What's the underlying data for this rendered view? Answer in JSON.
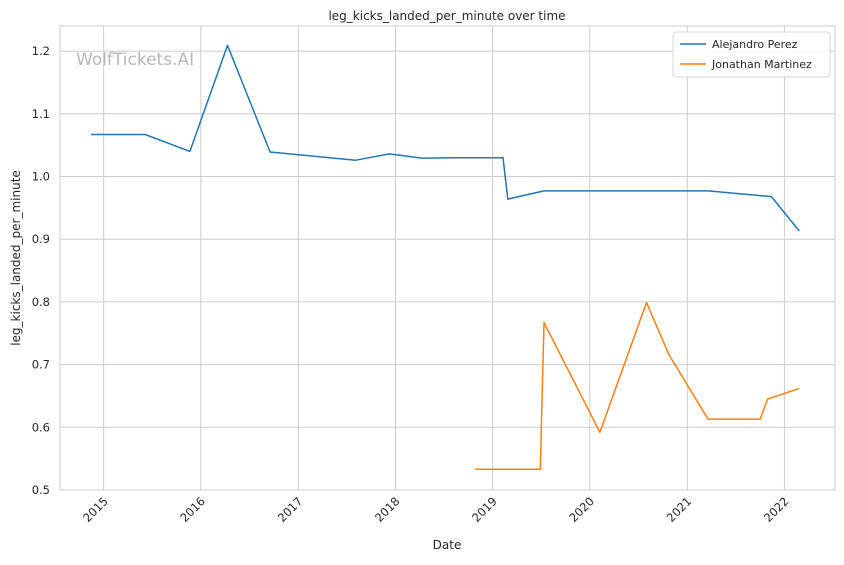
{
  "chart_data": {
    "type": "line",
    "title": "leg_kicks_landed_per_minute over time",
    "xlabel": "Date",
    "ylabel": "leg_kicks_landed_per_minute",
    "watermark": "WolfTickets.AI",
    "xlim": [
      "2014-07-21",
      "2022-07-10"
    ],
    "ylim": [
      0.5,
      1.24
    ],
    "x_ticks": [
      "2015",
      "2016",
      "2017",
      "2018",
      "2019",
      "2020",
      "2021",
      "2022"
    ],
    "y_ticks": [
      "0.5",
      "0.6",
      "0.7",
      "0.8",
      "0.9",
      "1.0",
      "1.1",
      "1.2"
    ],
    "grid": true,
    "legend_position": "top-right",
    "series": [
      {
        "name": "Alejandro Perez",
        "color": "#1f77b4",
        "points": [
          {
            "x": "2014-11-15",
            "y": 1.067
          },
          {
            "x": "2015-06-06",
            "y": 1.067
          },
          {
            "x": "2015-11-21",
            "y": 1.04
          },
          {
            "x": "2016-04-10",
            "y": 1.209
          },
          {
            "x": "2016-09-17",
            "y": 1.039
          },
          {
            "x": "2017-08-05",
            "y": 1.026
          },
          {
            "x": "2017-12-09",
            "y": 1.036
          },
          {
            "x": "2018-04-14",
            "y": 1.029
          },
          {
            "x": "2018-07-28",
            "y": 1.03
          },
          {
            "x": "2019-02-09",
            "y": 1.03
          },
          {
            "x": "2019-02-27",
            "y": 0.964
          },
          {
            "x": "2019-07-13",
            "y": 0.977
          },
          {
            "x": "2021-03-20",
            "y": 0.977
          },
          {
            "x": "2021-11-13",
            "y": 0.968
          },
          {
            "x": "2022-02-26",
            "y": 0.913
          }
        ]
      },
      {
        "name": "Jonathan Martinez",
        "color": "#ff7f0e",
        "points": [
          {
            "x": "2018-10-27",
            "y": 0.533
          },
          {
            "x": "2019-06-29",
            "y": 0.533
          },
          {
            "x": "2019-07-13",
            "y": 0.767
          },
          {
            "x": "2020-02-08",
            "y": 0.592
          },
          {
            "x": "2020-08-01",
            "y": 0.799
          },
          {
            "x": "2020-10-24",
            "y": 0.716
          },
          {
            "x": "2021-03-20",
            "y": 0.613
          },
          {
            "x": "2021-10-02",
            "y": 0.613
          },
          {
            "x": "2021-10-30",
            "y": 0.645
          },
          {
            "x": "2022-02-26",
            "y": 0.662
          }
        ]
      }
    ]
  }
}
